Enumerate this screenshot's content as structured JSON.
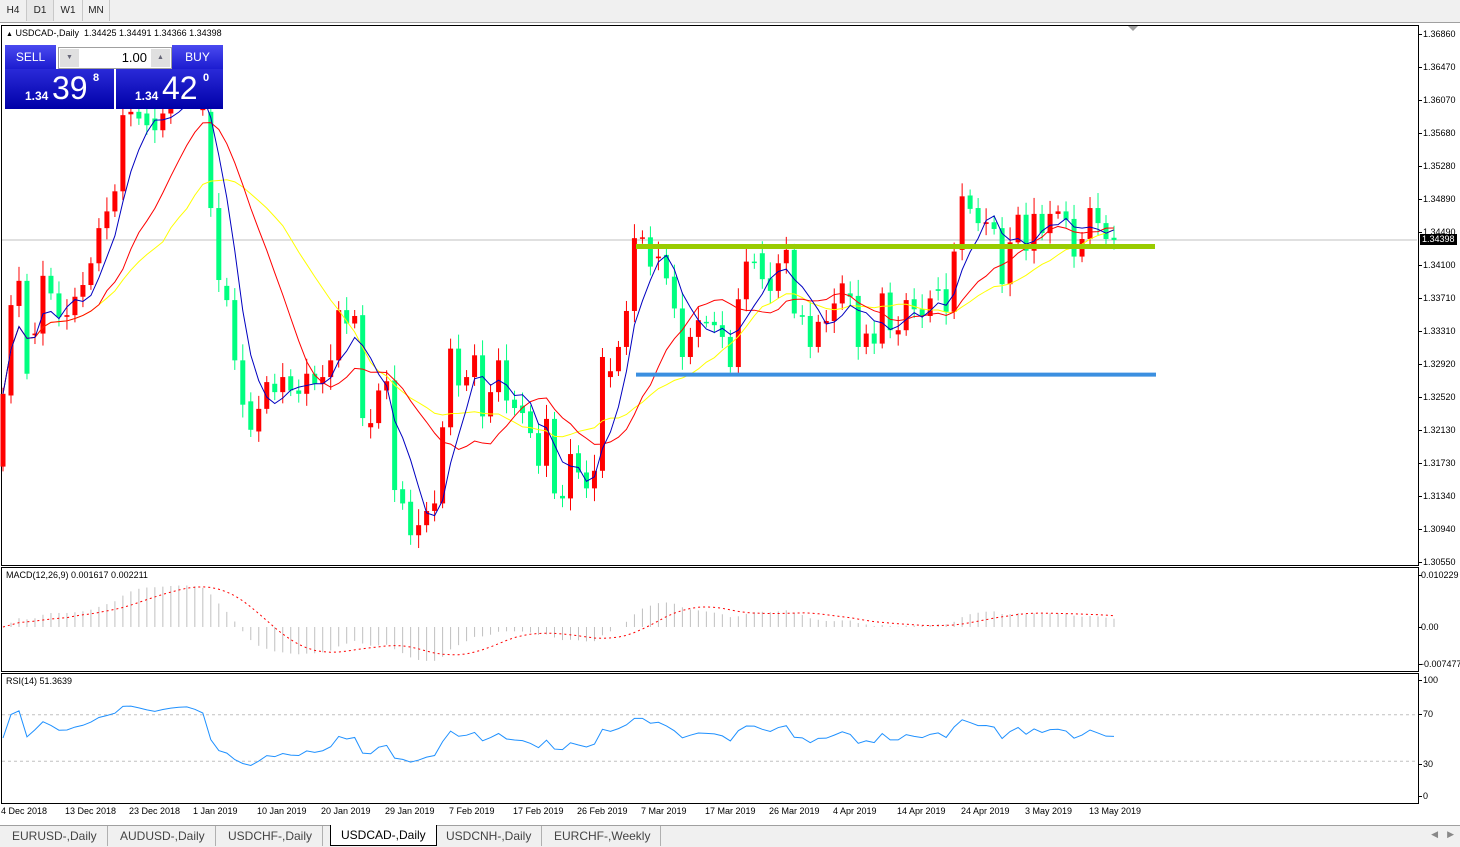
{
  "toolbar": {
    "timeframes": [
      "H4",
      "D1",
      "W1",
      "MN"
    ],
    "selected": "D1"
  },
  "chart": {
    "header": "USDCAD-,Daily",
    "ohlc": "1.34425 1.34491 1.34366 1.34398",
    "current_price": "1.34398",
    "price_axis": [
      "1.36860",
      "1.36470",
      "1.36070",
      "1.35680",
      "1.35280",
      "1.34890",
      "1.34490",
      "1.34100",
      "1.33710",
      "1.33310",
      "1.32920",
      "1.32520",
      "1.32130",
      "1.31730",
      "1.31340",
      "1.30940",
      "1.30550"
    ],
    "price_range": [
      1.3055,
      1.3686
    ],
    "time_axis": [
      "4 Dec 2018",
      "13 Dec 2018",
      "23 Dec 2018",
      "1 Jan 2019",
      "10 Jan 2019",
      "20 Jan 2019",
      "29 Jan 2019",
      "7 Feb 2019",
      "17 Feb 2019",
      "26 Feb 2019",
      "7 Mar 2019",
      "17 Mar 2019",
      "26 Mar 2019",
      "4 Apr 2019",
      "14 Apr 2019",
      "24 Apr 2019",
      "3 May 2019",
      "13 May 2019"
    ],
    "colors": {
      "bull": "#ff0000",
      "bear": "#00ff80",
      "ma_fast": "#0000c0",
      "ma_mid": "#ff0000",
      "ma_slow": "#ffff00",
      "resistance": "#99cc00",
      "support": "#3b8fe0"
    },
    "resistance_level": 1.3432,
    "support_level": 1.3279,
    "candles": {
      "open": [
        1.3169,
        1.3254,
        1.3361,
        1.3391,
        1.3326,
        1.3328,
        1.3397,
        1.3376,
        1.3348,
        1.335,
        1.3372,
        1.3386,
        1.3412,
        1.3454,
        1.3474,
        1.3498,
        1.359,
        1.3593,
        1.3591,
        1.3585,
        1.3571,
        1.3591,
        1.3607,
        1.3617,
        1.3621,
        1.3595,
        1.3593,
        1.3478,
        1.3385,
        1.3368,
        1.3296,
        1.3247,
        1.3211,
        1.3238,
        1.3268,
        1.3258,
        1.3277,
        1.326,
        1.3256,
        1.328,
        1.3268,
        1.3276,
        1.3296,
        1.3356,
        1.334,
        1.335,
        1.3216,
        1.3221,
        1.326,
        1.3272,
        1.3142,
        1.3127,
        1.3087,
        1.3099,
        1.3116,
        1.3125,
        1.3216,
        1.331,
        1.3266,
        1.3276,
        1.3302,
        1.3229,
        1.3258,
        1.3296,
        1.3249,
        1.3242,
        1.3235,
        1.3209,
        1.317,
        1.3226,
        1.3134,
        1.3131,
        1.3185,
        1.3162,
        1.3143,
        1.3164,
        1.3276,
        1.3283,
        1.3312,
        1.3355,
        1.3442,
        1.3443,
        1.3418,
        1.3422,
        1.3396,
        1.3358,
        1.33,
        1.3324,
        1.3342,
        1.3342,
        1.3338,
        1.3324,
        1.3288,
        1.3369,
        1.3414,
        1.3424,
        1.3394,
        1.3379,
        1.3412,
        1.3428,
        1.335,
        1.3349,
        1.3312,
        1.334,
        1.3343,
        1.3364,
        1.3376,
        1.3373,
        1.3312,
        1.3328,
        1.3316,
        1.3377,
        1.3327,
        1.3332,
        1.3369,
        1.3357,
        1.3349,
        1.3381,
        1.3381,
        1.3354,
        1.3428,
        1.3493,
        1.3478,
        1.3459,
        1.3461,
        1.3454,
        1.3387,
        1.3437,
        1.347,
        1.3427,
        1.3471,
        1.3448,
        1.3471,
        1.3474,
        1.3465,
        1.342,
        1.3441,
        1.3478,
        1.346,
        1.34425
      ],
      "close": [
        1.3256,
        1.3362,
        1.3391,
        1.328,
        1.3328,
        1.3397,
        1.3376,
        1.3348,
        1.335,
        1.3372,
        1.3386,
        1.3412,
        1.3454,
        1.3474,
        1.3498,
        1.3589,
        1.3593,
        1.3585,
        1.3577,
        1.3571,
        1.3591,
        1.3607,
        1.3617,
        1.3621,
        1.3613,
        1.3601,
        1.3478,
        1.3392,
        1.3368,
        1.3296,
        1.3243,
        1.3213,
        1.3238,
        1.327,
        1.3258,
        1.3276,
        1.326,
        1.3256,
        1.328,
        1.3268,
        1.3276,
        1.3296,
        1.3356,
        1.334,
        1.3349,
        1.3227,
        1.3221,
        1.326,
        1.3271,
        1.3141,
        1.3125,
        1.3087,
        1.3099,
        1.3116,
        1.3125,
        1.3216,
        1.331,
        1.3266,
        1.3276,
        1.3302,
        1.3229,
        1.3258,
        1.3296,
        1.3248,
        1.3239,
        1.3233,
        1.3209,
        1.317,
        1.3226,
        1.3137,
        1.3131,
        1.3184,
        1.3162,
        1.3143,
        1.3164,
        1.33,
        1.3283,
        1.3312,
        1.3355,
        1.3442,
        1.3443,
        1.3408,
        1.342,
        1.3394,
        1.3358,
        1.33,
        1.3324,
        1.3344,
        1.3341,
        1.3338,
        1.3324,
        1.3288,
        1.3369,
        1.3414,
        1.3413,
        1.3393,
        1.3379,
        1.3412,
        1.3428,
        1.3352,
        1.3348,
        1.3312,
        1.3342,
        1.3343,
        1.3364,
        1.3388,
        1.3372,
        1.3312,
        1.3328,
        1.3316,
        1.3376,
        1.3332,
        1.3332,
        1.3368,
        1.3357,
        1.3349,
        1.337,
        1.3379,
        1.3354,
        1.3426,
        1.3492,
        1.3477,
        1.346,
        1.3461,
        1.3453,
        1.3387,
        1.3437,
        1.347,
        1.3427,
        1.3471,
        1.3448,
        1.3471,
        1.3474,
        1.3464,
        1.342,
        1.3441,
        1.3478,
        1.346,
        1.3441,
        1.34398
      ]
    }
  },
  "trade_panel": {
    "sell_label": "SELL",
    "buy_label": "BUY",
    "volume": "1.00",
    "sell_prefix": "1.34",
    "sell_big": "39",
    "sell_sup": "8",
    "buy_prefix": "1.34",
    "buy_big": "42",
    "buy_sup": "0"
  },
  "macd": {
    "label": "MACD(12,26,9) 0.001617 0.002211",
    "axis": [
      "0.010229",
      "0.00",
      "-0.007477"
    ],
    "range": [
      -0.007477,
      0.010229
    ]
  },
  "rsi": {
    "label": "RSI(14) 51.3639",
    "axis": [
      "100",
      "70",
      "30",
      "0"
    ],
    "levels": [
      70,
      30
    ]
  },
  "tabs": [
    {
      "label": "EURUSD-,Daily"
    },
    {
      "label": "AUDUSD-,Daily"
    },
    {
      "label": "USDCHF-,Daily"
    },
    {
      "label": "USDCAD-,Daily",
      "active": true
    },
    {
      "label": "USDCNH-,Daily"
    },
    {
      "label": "EURCHF-,Weekly"
    }
  ]
}
